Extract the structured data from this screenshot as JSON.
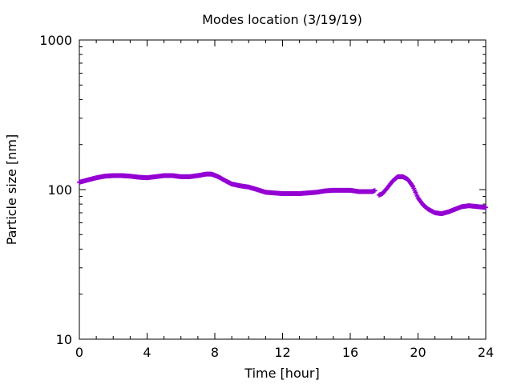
{
  "chart_data": {
    "type": "scatter",
    "title": "Modes location (3/19/19)",
    "xlabel": "Time [hour]",
    "ylabel": "Particle size [nm]",
    "xlim": [
      0,
      24
    ],
    "ylim": [
      10,
      1000
    ],
    "yscale": "log",
    "grid": false,
    "legend": "none",
    "x_ticks": [
      "0",
      "4",
      "8",
      "12",
      "16",
      "20",
      "24"
    ],
    "x_tick_values": [
      0,
      4,
      8,
      12,
      16,
      20,
      24
    ],
    "y_ticks": [
      "10",
      "100",
      "1000"
    ],
    "y_tick_values": [
      10,
      100,
      1000
    ],
    "marker": "plus",
    "color": "#9400d3",
    "series": [
      {
        "x": [
          0.0,
          0.5,
          1.0,
          1.5,
          2.0,
          2.5,
          3.0,
          3.5,
          4.0,
          4.5,
          5.0,
          5.5,
          6.0,
          6.5,
          7.0,
          7.5,
          7.8,
          8.2,
          8.6,
          9.0,
          9.5,
          10.0,
          10.5,
          11.0,
          11.5,
          12.0,
          12.5,
          13.0,
          13.5,
          14.0,
          14.5,
          15.0,
          15.5,
          16.0,
          16.5,
          17.0,
          17.3,
          17.5,
          17.7,
          17.9,
          18.2,
          18.5,
          18.8,
          19.1,
          19.4,
          19.7,
          20.0,
          20.3,
          20.6,
          21.0,
          21.4,
          21.8,
          22.2,
          22.6,
          23.0,
          23.5,
          24.0
        ],
        "y": [
          112,
          116,
          120,
          123,
          124,
          124,
          123,
          121,
          120,
          122,
          124,
          124,
          122,
          122,
          124,
          127,
          127,
          122,
          115,
          109,
          106,
          104,
          100,
          96,
          95,
          94,
          94,
          94,
          95,
          96,
          98,
          99,
          99,
          99,
          97,
          97,
          97,
          99,
          92,
          94,
          103,
          114,
          122,
          122,
          117,
          105,
          88,
          79,
          74,
          70,
          69,
          71,
          74,
          77,
          78,
          77,
          76
        ]
      }
    ]
  }
}
